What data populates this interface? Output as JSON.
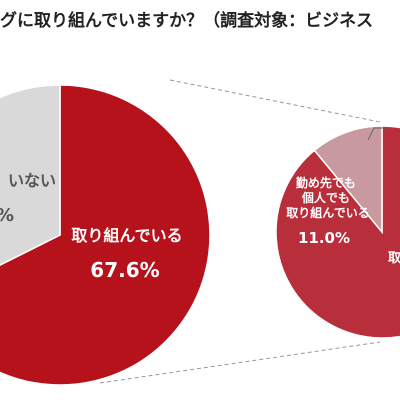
{
  "title": "グに取り組んでいますか？（調査対象：ビジネス",
  "colors": {
    "main_red": "#b5121b",
    "main_gray": "#d9d9d9",
    "sub_dark": "#b82e3b",
    "sub_light": "#c8999e",
    "connector": "#999999"
  },
  "chart_data": [
    {
      "type": "pie",
      "slices": [
        {
          "label": "取り組んでいる",
          "value": 67.6,
          "value_label": "67.6%"
        },
        {
          "label": "いない",
          "value": 32.4,
          "value_label": "%"
        }
      ]
    },
    {
      "type": "pie",
      "slices": [
        {
          "label": "勤め先でも\n個人でも\n取り組んでいる",
          "value": 11.0,
          "value_label": "11.0%"
        },
        {
          "label": "取",
          "value": 89.0,
          "value_label": ""
        }
      ]
    }
  ]
}
